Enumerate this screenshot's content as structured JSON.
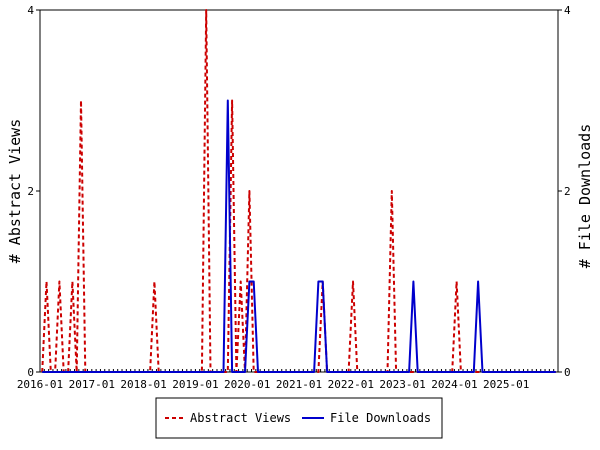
{
  "chart_data": {
    "type": "line",
    "y_left_label": "# Abstract Views",
    "y_right_label": "# File Downloads",
    "ylim": [
      0,
      4
    ],
    "y_ticks": [
      "0",
      "2",
      "4"
    ],
    "x_tick_labels": [
      "2016-01",
      "2017-01",
      "2018-01",
      "2019-01",
      "2020-01",
      "2021-01",
      "2022-01",
      "2023-01",
      "2024-01",
      "2025-01"
    ],
    "x_start": "2016-01",
    "x_end": "2025-12",
    "grid": false,
    "legend_position": "bottom",
    "series": [
      {
        "name": "Abstract Views",
        "color": "#cc0000",
        "style": "dashed",
        "axis": "left",
        "points": [
          [
            "2016-02",
            1
          ],
          [
            "2016-05",
            1
          ],
          [
            "2016-08",
            1
          ],
          [
            "2016-10",
            3
          ],
          [
            "2018-03",
            1
          ],
          [
            "2019-03",
            4
          ],
          [
            "2019-09",
            3
          ],
          [
            "2019-11",
            1
          ],
          [
            "2020-01",
            2
          ],
          [
            "2021-06",
            1
          ],
          [
            "2022-01",
            1
          ],
          [
            "2022-10",
            2
          ],
          [
            "2024-01",
            1
          ]
        ]
      },
      {
        "name": "File Downloads",
        "color": "#0000cc",
        "style": "solid",
        "axis": "right",
        "points": [
          [
            "2019-08",
            3
          ],
          [
            "2020-01",
            1
          ],
          [
            "2020-02",
            1
          ],
          [
            "2021-05",
            1
          ],
          [
            "2021-06",
            1
          ],
          [
            "2023-03",
            1
          ],
          [
            "2024-06",
            1
          ]
        ]
      }
    ]
  }
}
